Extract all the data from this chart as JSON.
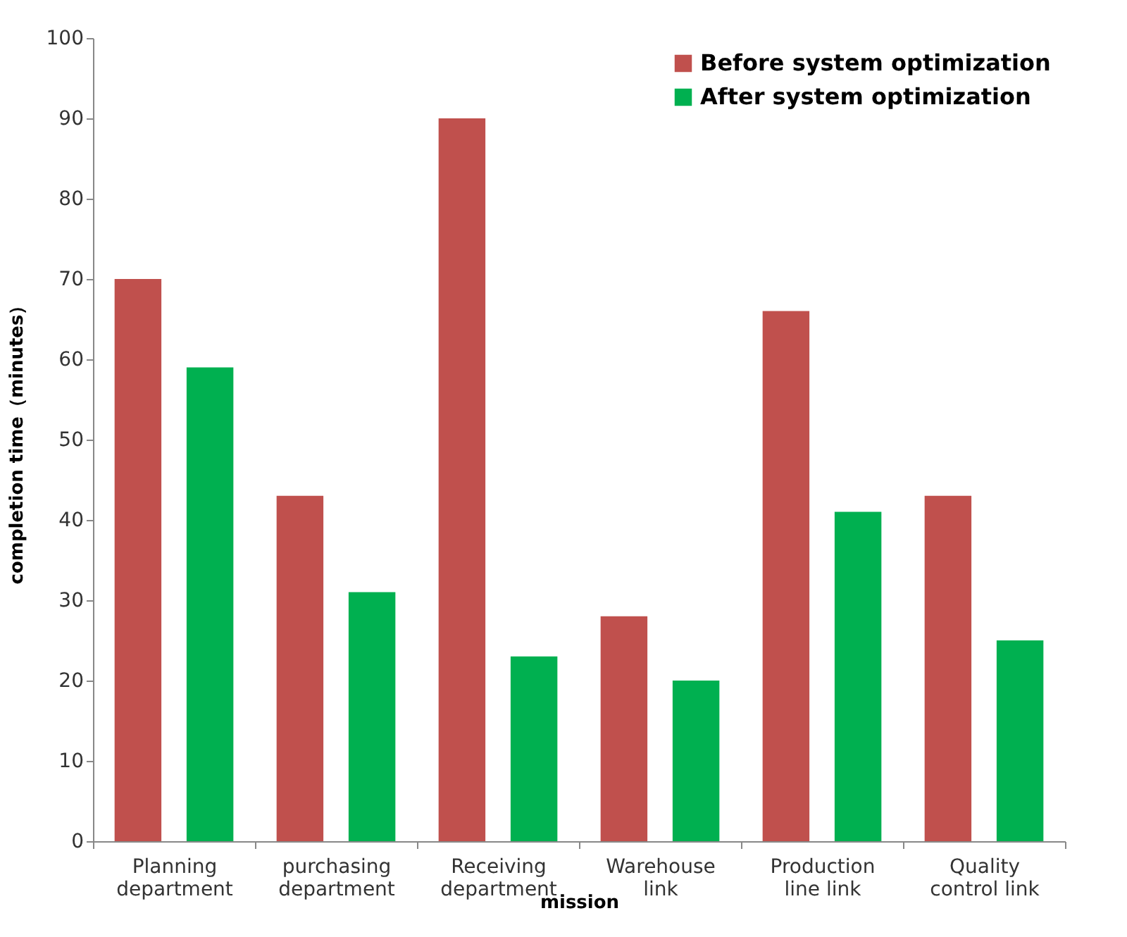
{
  "chart_data": {
    "type": "bar",
    "xlabel": "mission",
    "ylabel": "completion time（minutes）",
    "categories": [
      "Planning department",
      "purchasing department",
      "Receiving department",
      "Warehouse link",
      "Production line link",
      "Quality control link"
    ],
    "series": [
      {
        "name": "Before system optimization",
        "color": "#c0504d",
        "values": [
          70,
          43,
          90,
          28,
          66,
          43
        ]
      },
      {
        "name": "After system optimization",
        "color": "#00b050",
        "values": [
          59,
          31,
          23,
          20,
          41,
          25
        ]
      }
    ],
    "ylim": [
      0,
      100
    ],
    "yticks": [
      0,
      10,
      20,
      30,
      40,
      50,
      60,
      70,
      80,
      90,
      100
    ],
    "grid": false,
    "legend": "top right"
  }
}
